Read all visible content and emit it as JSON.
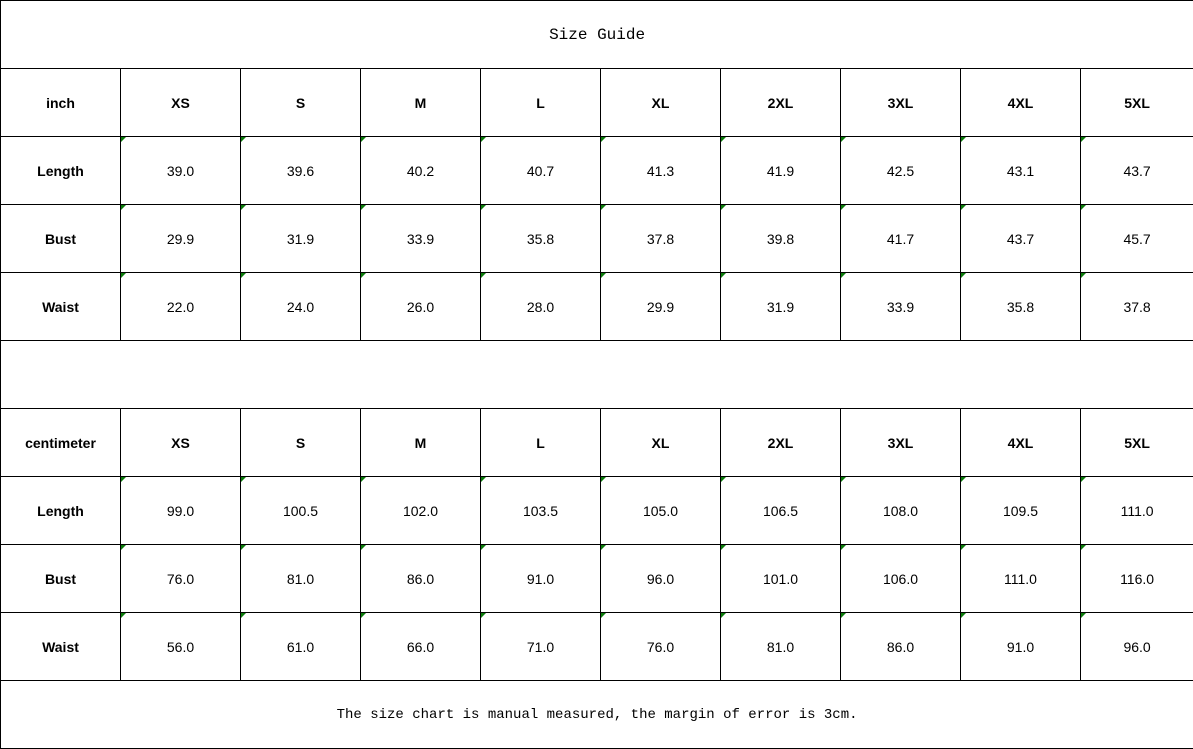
{
  "title": "Size Guide",
  "sizes": [
    "XS",
    "S",
    "M",
    "L",
    "XL",
    "2XL",
    "3XL",
    "4XL",
    "5XL"
  ],
  "tables": [
    {
      "unit": "inch",
      "rows": [
        {
          "label": "Length",
          "values": [
            "39.0",
            "39.6",
            "40.2",
            "40.7",
            "41.3",
            "41.9",
            "42.5",
            "43.1",
            "43.7"
          ]
        },
        {
          "label": "Bust",
          "values": [
            "29.9",
            "31.9",
            "33.9",
            "35.8",
            "37.8",
            "39.8",
            "41.7",
            "43.7",
            "45.7"
          ]
        },
        {
          "label": "Waist",
          "values": [
            "22.0",
            "24.0",
            "26.0",
            "28.0",
            "29.9",
            "31.9",
            "33.9",
            "35.8",
            "37.8"
          ]
        }
      ]
    },
    {
      "unit": "centimeter",
      "rows": [
        {
          "label": "Length",
          "values": [
            "99.0",
            "100.5",
            "102.0",
            "103.5",
            "105.0",
            "106.5",
            "108.0",
            "109.5",
            "111.0"
          ]
        },
        {
          "label": "Bust",
          "values": [
            "76.0",
            "81.0",
            "86.0",
            "91.0",
            "96.0",
            "101.0",
            "106.0",
            "111.0",
            "116.0"
          ]
        },
        {
          "label": "Waist",
          "values": [
            "56.0",
            "61.0",
            "66.0",
            "71.0",
            "76.0",
            "81.0",
            "86.0",
            "91.0",
            "96.0"
          ]
        }
      ]
    }
  ],
  "note": "The size chart is manual measured, the margin of error is 3cm.",
  "colors": {
    "cell_marker": "#0a7a0a"
  }
}
